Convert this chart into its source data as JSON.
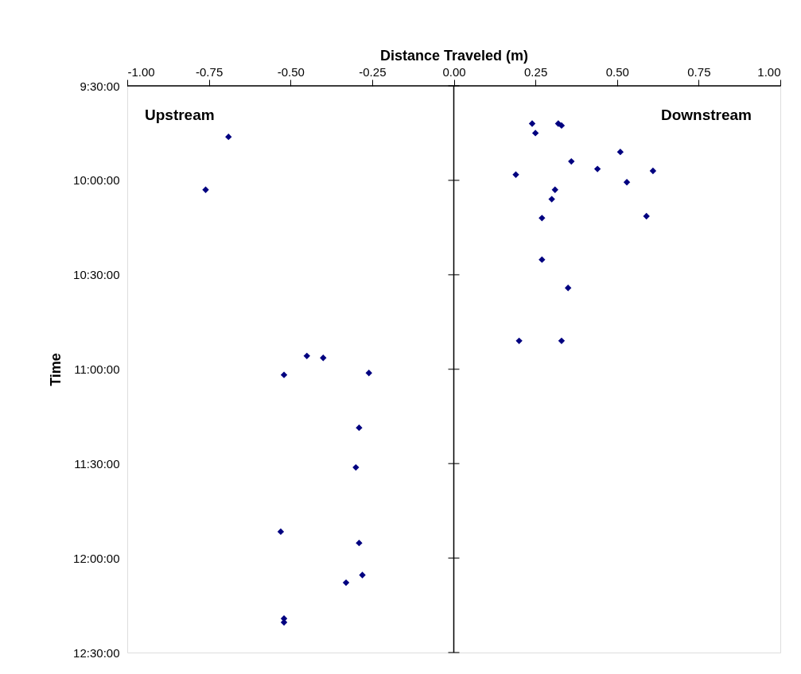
{
  "chart_data": {
    "type": "scatter",
    "xlabel": "Distance Traveled (m)",
    "ylabel": "Time",
    "annotations": [
      "Upstream",
      "Downstream"
    ],
    "series": [
      {
        "color": "#000080",
        "x": [
          -0.69,
          -0.76,
          -0.45,
          -0.4,
          -0.52,
          -0.26,
          -0.29,
          -0.3,
          -0.53,
          -0.29,
          -0.28,
          -0.33,
          -0.52,
          -0.52,
          0.24,
          0.32,
          0.33,
          0.25,
          0.51,
          0.36,
          0.44,
          0.61,
          0.19,
          0.53,
          0.31,
          0.3,
          0.59,
          0.27,
          0.27,
          0.35,
          0.2,
          0.33
        ],
        "values": [
          9.77,
          10.05,
          10.93,
          10.94,
          11.03,
          11.02,
          11.31,
          11.52,
          11.86,
          11.92,
          12.09,
          12.13,
          12.32,
          12.34,
          9.7,
          9.7,
          9.71,
          9.75,
          9.85,
          9.9,
          9.94,
          9.95,
          9.97,
          10.01,
          10.05,
          10.1,
          10.19,
          10.2,
          10.42,
          10.57,
          10.85,
          10.85
        ]
      }
    ],
    "xlim": [
      -1,
      1
    ],
    "xticks": [
      {
        "value": -1,
        "label": "-1.00"
      },
      {
        "value": -0.75,
        "label": "-0.75"
      },
      {
        "value": -0.5,
        "label": "-0.50"
      },
      {
        "value": -0.25,
        "label": "-0.25"
      },
      {
        "value": 0,
        "label": "0.00"
      },
      {
        "value": 0.25,
        "label": "0.25"
      },
      {
        "value": 0.5,
        "label": "0.50"
      },
      {
        "value": 0.75,
        "label": "0.75"
      },
      {
        "value": 1,
        "label": "1.00"
      }
    ],
    "ylim": [
      12.5,
      9.5
    ],
    "yticks": [
      {
        "value": 9.5,
        "label": "9:30:00"
      },
      {
        "value": 10,
        "label": "10:00:00"
      },
      {
        "value": 10.5,
        "label": "10:30:00"
      },
      {
        "value": 11,
        "label": "11:00:00"
      },
      {
        "value": 11.5,
        "label": "11:30:00"
      },
      {
        "value": 12,
        "label": "12:00:00"
      },
      {
        "value": 12.5,
        "label": "12:30:00"
      }
    ],
    "marker": "diamond"
  }
}
